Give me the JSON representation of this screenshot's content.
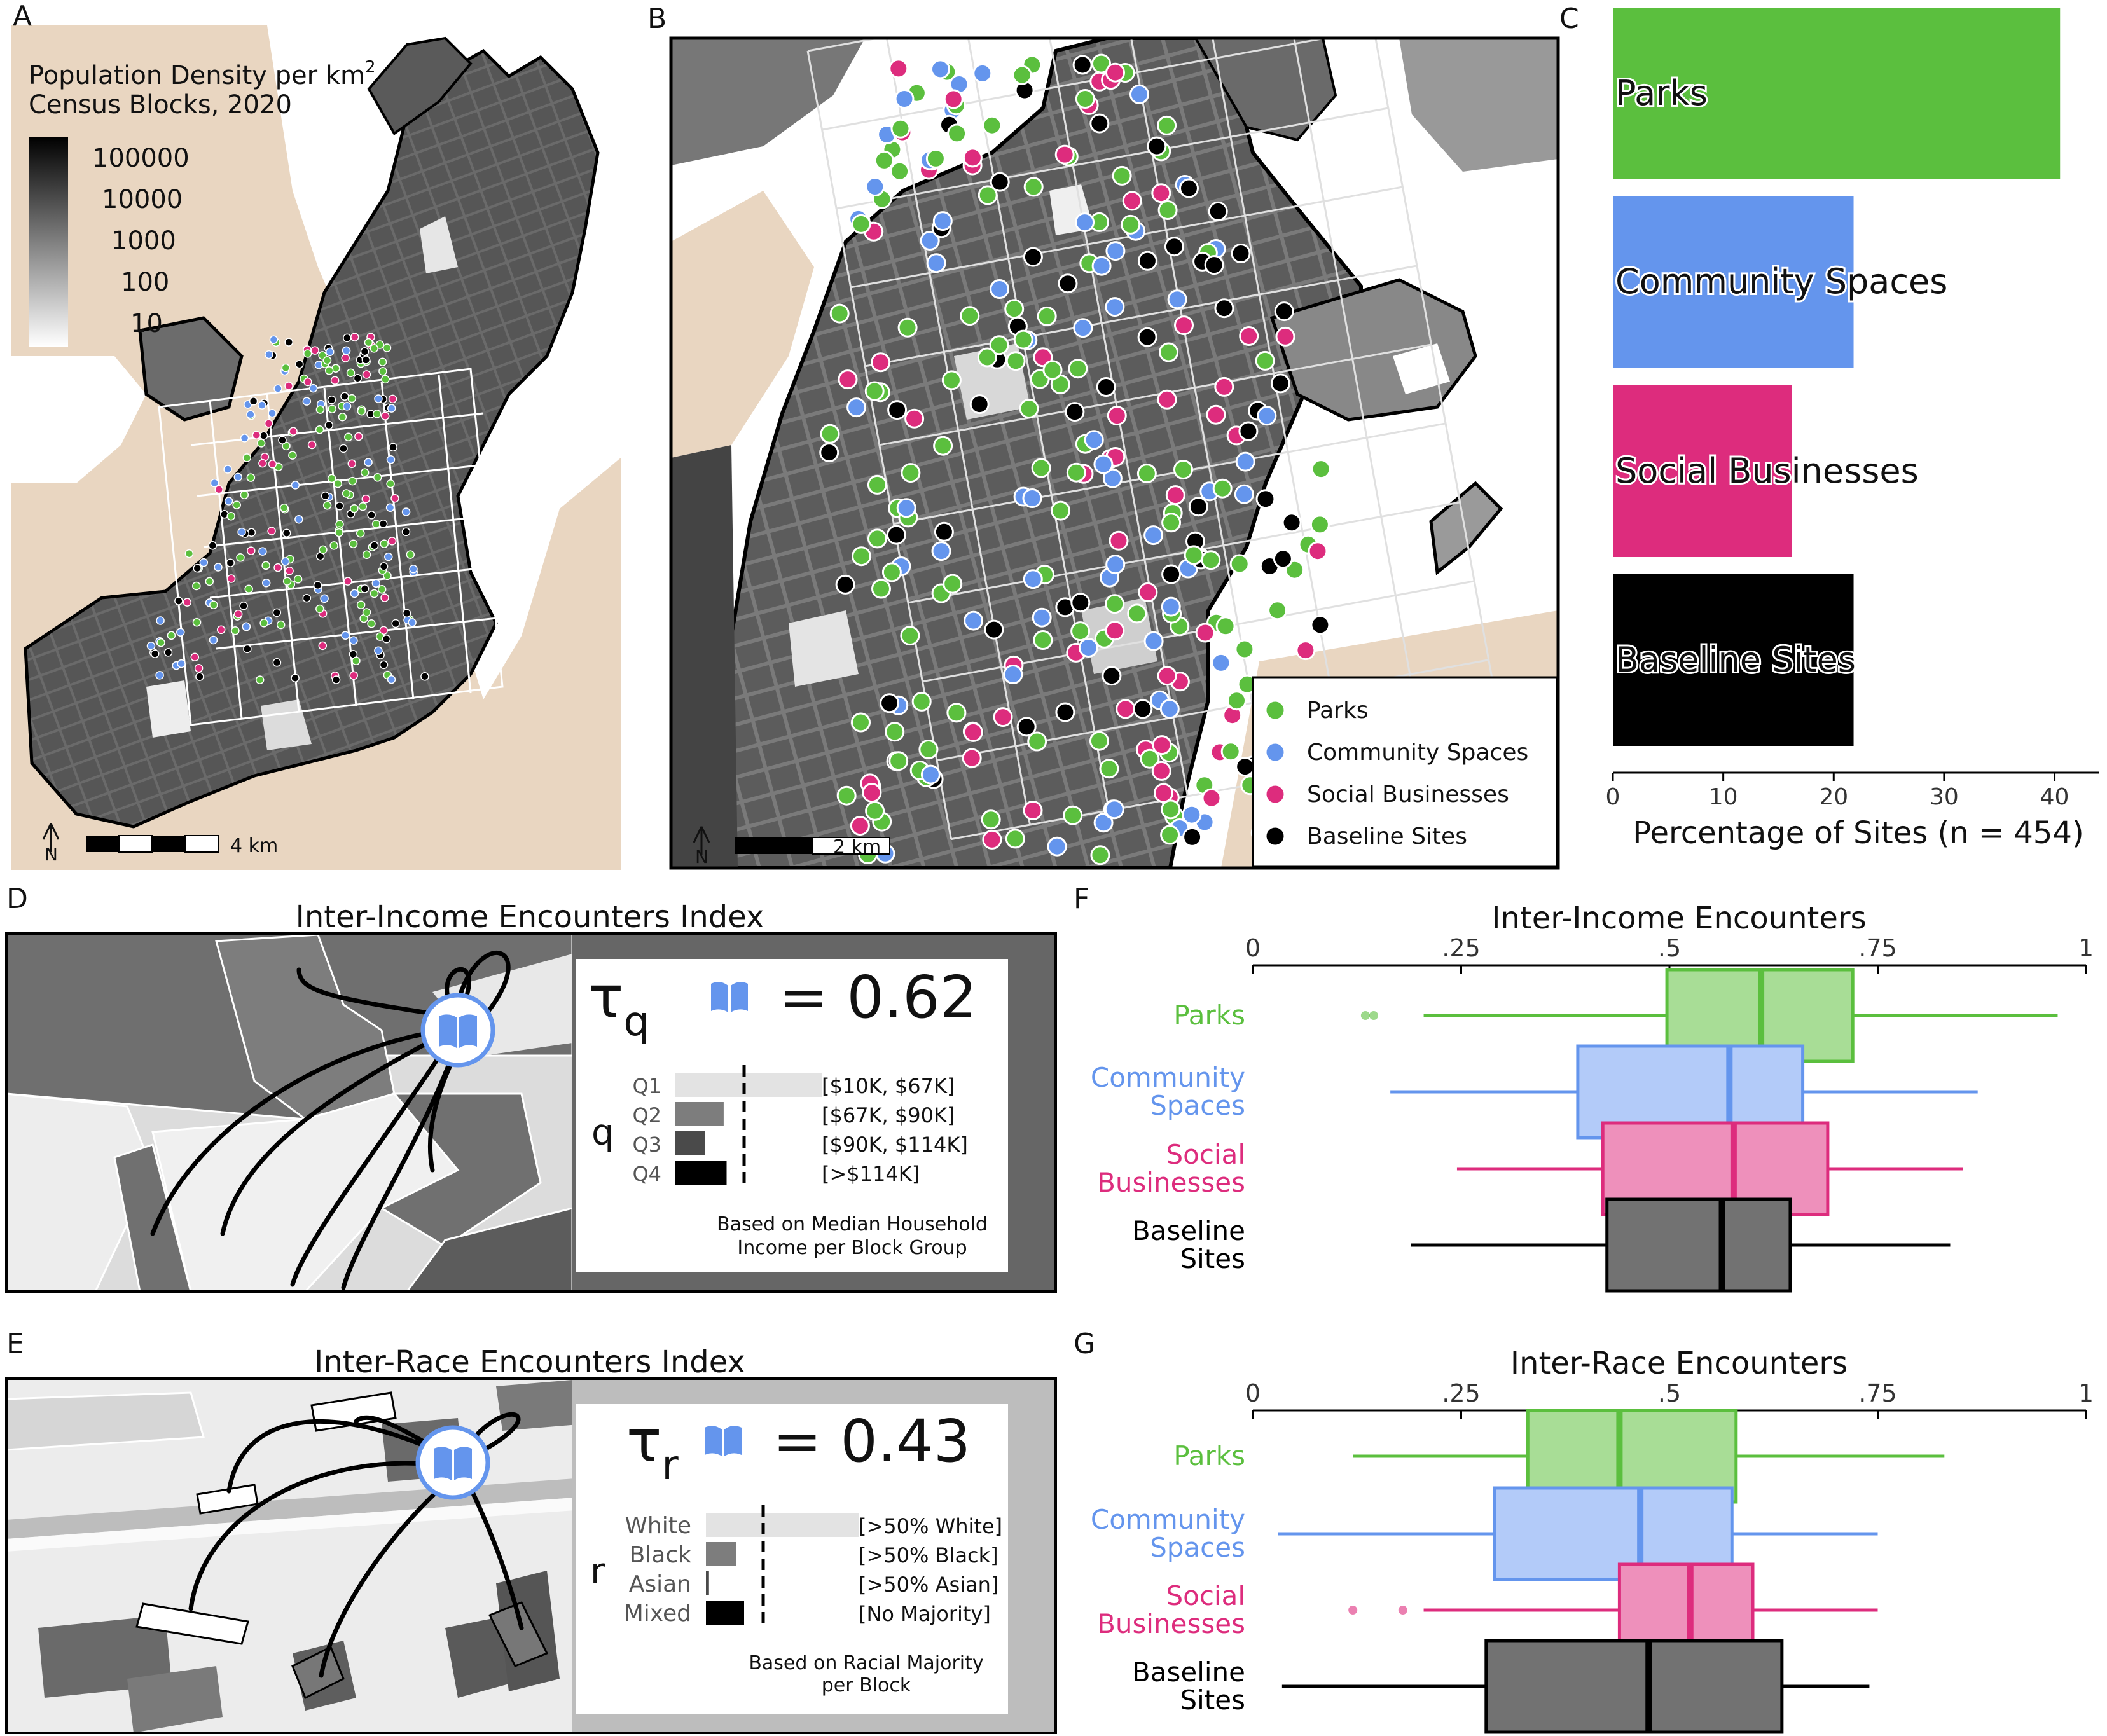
{
  "panels": {
    "a": {
      "letter": "A",
      "legend_title_1": "Population Density per km",
      "legend_title_sup": "2",
      "legend_title_2": "Census Blocks, 2020",
      "legend_ticks": [
        "100000",
        "10000",
        "1000",
        "100",
        "10"
      ],
      "scale": "4 km",
      "north": "N"
    },
    "b": {
      "letter": "B",
      "scale": "2 km",
      "north": "N"
    },
    "c": {
      "letter": "C"
    },
    "d": {
      "letter": "D",
      "title": "Inter-Income Encounters Index",
      "tau": "τ",
      "tau_sub": "q",
      "tau_value": "= 0.62",
      "var": "q",
      "rows": [
        {
          "label": "Q1",
          "range": "[$10K, $67K]",
          "share": 1.0
        },
        {
          "label": "Q2",
          "range": "[$67K, $90K]",
          "share": 0.33
        },
        {
          "label": "Q3",
          "range": "[$90K, $114K]",
          "share": 0.2
        },
        {
          "label": "Q4",
          "range": "[>$114K]",
          "share": 0.35
        }
      ],
      "note_1": "Based on Median Household",
      "note_2": "Income per Block Group"
    },
    "e": {
      "letter": "E",
      "title": "Inter-Race Encounters Index",
      "tau": "τ",
      "tau_sub": "r",
      "tau_value": "= 0.43",
      "var": "r",
      "rows": [
        {
          "label": "White",
          "range": "[>50% White]",
          "share": 1.0
        },
        {
          "label": "Black",
          "range": "[>50% Black]",
          "share": 0.2
        },
        {
          "label": "Asian",
          "range": "[>50% Asian]",
          "share": 0.02
        },
        {
          "label": "Mixed",
          "range": "[No Majority]",
          "share": 0.25
        }
      ],
      "note_1": "Based on Racial Majority",
      "note_2": "per Block"
    },
    "f": {
      "letter": "F"
    },
    "g": {
      "letter": "G"
    }
  },
  "legend": {
    "items": [
      {
        "label": "Parks",
        "color": "#5bbf3e"
      },
      {
        "label": "Community Spaces",
        "color": "#6495ed"
      },
      {
        "label": "Social Businesses",
        "color": "#dd2c7d"
      },
      {
        "label": "Baseline Sites",
        "color": "#000000"
      }
    ]
  },
  "chart_data": [
    {
      "type": "bar",
      "orientation": "horizontal",
      "categories": [
        "Parks",
        "Community Spaces",
        "Social Businesses",
        "Baseline Sites"
      ],
      "values": [
        40.5,
        21.8,
        16.2,
        21.8
      ],
      "colors": [
        "#5bbf3e",
        "#6495ed",
        "#dd2c7d",
        "#000000"
      ],
      "xlabel": "Percentage of Sites (n = 454)",
      "xlim": [
        0,
        44
      ],
      "xticks": [
        "0",
        "10",
        "20",
        "30",
        "40"
      ],
      "xtick_values": [
        0,
        10,
        20,
        30,
        40
      ]
    },
    {
      "type": "boxplot",
      "title": "Inter-Income Encounters",
      "categories": [
        "Parks",
        "Community\nSpaces",
        "Social\nBusinesses",
        "Baseline\nSites"
      ],
      "colors": [
        "#5bbf3e",
        "#6495ed",
        "#dd2c7d",
        "#000000"
      ],
      "boxes": [
        {
          "whislo": 0.205,
          "q1": 0.497,
          "med": 0.61,
          "q3": 0.72,
          "whishi": 0.966,
          "fliers": [
            0.135,
            0.145
          ]
        },
        {
          "whislo": 0.165,
          "q1": 0.39,
          "med": 0.572,
          "q3": 0.66,
          "whishi": 0.87,
          "fliers": []
        },
        {
          "whislo": 0.245,
          "q1": 0.42,
          "med": 0.577,
          "q3": 0.69,
          "whishi": 0.852,
          "fliers": []
        },
        {
          "whislo": 0.19,
          "q1": 0.425,
          "med": 0.563,
          "q3": 0.645,
          "whishi": 0.837,
          "fliers": []
        }
      ],
      "xlim": [
        0,
        1
      ],
      "xticks": [
        "0",
        ".25",
        ".5",
        ".75",
        "1"
      ],
      "xtick_values": [
        0,
        0.25,
        0.5,
        0.75,
        1
      ]
    },
    {
      "type": "boxplot",
      "title": "Inter-Race Encounters",
      "categories": [
        "Parks",
        "Community\nSpaces",
        "Social\nBusinesses",
        "Baseline\nSites"
      ],
      "colors": [
        "#5bbf3e",
        "#6495ed",
        "#dd2c7d",
        "#000000"
      ],
      "boxes": [
        {
          "whislo": 0.12,
          "q1": 0.33,
          "med": 0.44,
          "q3": 0.58,
          "whishi": 0.83,
          "fliers": []
        },
        {
          "whislo": 0.03,
          "q1": 0.29,
          "med": 0.465,
          "q3": 0.575,
          "whishi": 0.75,
          "fliers": []
        },
        {
          "whislo": 0.205,
          "q1": 0.44,
          "med": 0.525,
          "q3": 0.6,
          "whishi": 0.75,
          "fliers": [
            0.12,
            0.18
          ]
        },
        {
          "whislo": 0.035,
          "q1": 0.28,
          "med": 0.475,
          "q3": 0.635,
          "whishi": 0.74,
          "fliers": []
        }
      ],
      "xlim": [
        0,
        1
      ],
      "xticks": [
        "0",
        ".25",
        ".5",
        ".75",
        "1"
      ],
      "xtick_values": [
        0,
        0.25,
        0.5,
        0.75,
        1
      ]
    }
  ]
}
